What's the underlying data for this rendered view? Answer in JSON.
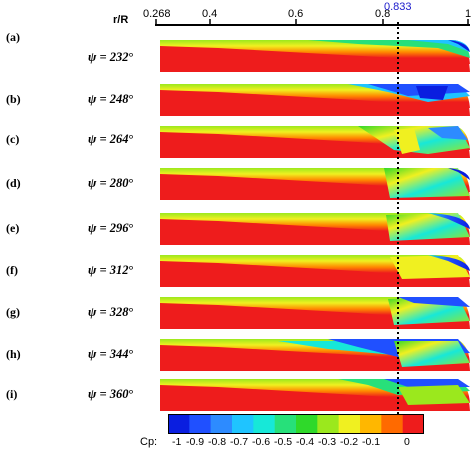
{
  "figure": {
    "axis_title": "r/R",
    "axis_ticks": [
      "0.268",
      "0.4",
      "0.6",
      "0.8",
      "1"
    ],
    "marker_label": "0.833",
    "panels": [
      {
        "label": "(a)",
        "psi": "232"
      },
      {
        "label": "(b)",
        "psi": "248"
      },
      {
        "label": "(c)",
        "psi": "264"
      },
      {
        "label": "(d)",
        "psi": "280"
      },
      {
        "label": "(e)",
        "psi": "296"
      },
      {
        "label": "(f)",
        "psi": "312"
      },
      {
        "label": "(g)",
        "psi": "328"
      },
      {
        "label": "(h)",
        "psi": "344"
      },
      {
        "label": "(i)",
        "psi": "360"
      }
    ],
    "colorbar": {
      "title": "Cp:",
      "ticks": [
        "-1",
        "-0.9",
        "-0.8",
        "-0.7",
        "-0.6",
        "-0.5",
        "-0.4",
        "-0.3",
        "-0.2",
        "-0.1",
        "0"
      ],
      "colors": [
        "#0a1ee0",
        "#2050ff",
        "#2d8bff",
        "#1fc4ff",
        "#17e8d8",
        "#27e07a",
        "#2fd92a",
        "#9be81d",
        "#f0f020",
        "#ffb700",
        "#ff6a00",
        "#ee1c1c"
      ]
    }
  }
}
